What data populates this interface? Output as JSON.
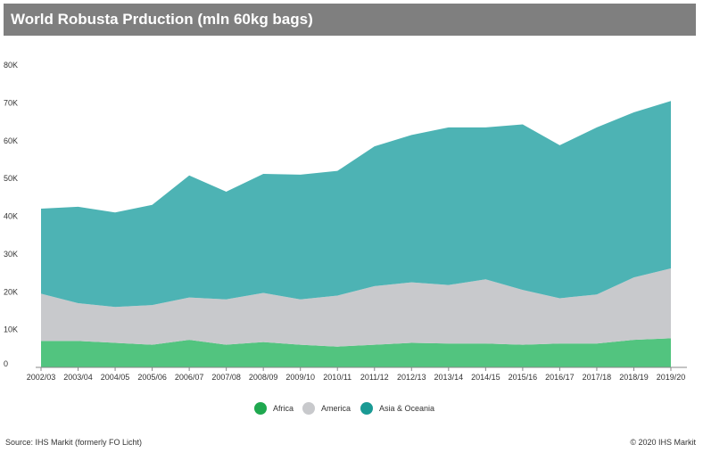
{
  "title": "World Robusta Prduction (mln 60kg bags)",
  "source": "Source: IHS Markit (formerly FO Licht)",
  "copyright": "© 2020 IHS Markit",
  "colors": {
    "title_bg": "#7f7f7f",
    "africa": "#52c47f",
    "america": "#c8c9cc",
    "asia": "#4db3b4",
    "legend_africa": "#1fa84f",
    "legend_asia": "#1a9a94"
  },
  "chart_data": {
    "type": "area",
    "stacked": true,
    "categories": [
      "2002/03",
      "2003/04",
      "2004/05",
      "2005/06",
      "2006/07",
      "2007/08",
      "2008/09",
      "2009/10",
      "2010/11",
      "2011/12",
      "2012/13",
      "2013/14",
      "2014/15",
      "2015/16",
      "2016/17",
      "2017/18",
      "2018/19",
      "2019/20"
    ],
    "y_ticks": [
      "0",
      "10K",
      "20K",
      "30K",
      "40K",
      "50K",
      "60K",
      "70K",
      "80K"
    ],
    "ylim": [
      0,
      80000
    ],
    "legend_position": "bottom",
    "series": [
      {
        "name": "Africa",
        "values": [
          7000,
          7000,
          6500,
          6000,
          7300,
          6000,
          6700,
          6000,
          5500,
          6000,
          6500,
          6300,
          6300,
          6000,
          6300,
          6300,
          7300,
          7700
        ]
      },
      {
        "name": "America",
        "values": [
          12500,
          10000,
          9500,
          10500,
          11200,
          12000,
          13000,
          12000,
          13500,
          15500,
          16000,
          15500,
          17000,
          14500,
          12000,
          13000,
          16500,
          18500
        ]
      },
      {
        "name": "Asia & Oceania",
        "values": [
          22500,
          25500,
          25000,
          26500,
          32300,
          28500,
          31500,
          33000,
          33000,
          37000,
          39000,
          41700,
          40200,
          43800,
          40500,
          44200,
          43700,
          44300
        ]
      }
    ]
  }
}
